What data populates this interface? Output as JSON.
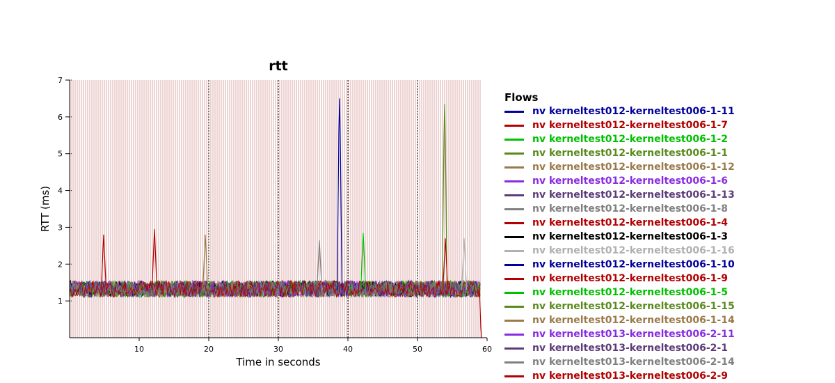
{
  "chart_data": {
    "type": "line",
    "title": "rtt",
    "xlabel": "Time in seconds",
    "ylabel": "RTT (ms)",
    "xlim": [
      0,
      60
    ],
    "ylim": [
      0,
      7
    ],
    "xticks": [
      "10",
      "20",
      "30",
      "40",
      "50",
      "60"
    ],
    "yticks": [
      "1",
      "2",
      "3",
      "4",
      "5",
      "6",
      "7"
    ],
    "grid": "dotted vertical lines at 20, 30, 40, 50",
    "legend_placement": "right",
    "legend_title": "Flows",
    "baseline_range": [
      1.0,
      1.6
    ],
    "series": [
      {
        "name": "nv kerneltest012-kerneltest006-1-11",
        "color": "#00009c",
        "spikes": [
          [
            38.8,
            6.5
          ]
        ]
      },
      {
        "name": "nv kerneltest012-kerneltest006-1-7",
        "color": "#b30000",
        "spikes": [
          [
            4.9,
            2.8
          ]
        ]
      },
      {
        "name": "nv kerneltest012-kerneltest006-1-2",
        "color": "#00c000",
        "spikes": [
          [
            42.2,
            2.85
          ]
        ]
      },
      {
        "name": "nv kerneltest012-kerneltest006-1-1",
        "color": "#5a8a1e",
        "spikes": [
          [
            53.9,
            6.35
          ]
        ]
      },
      {
        "name": "nv kerneltest012-kerneltest006-1-12",
        "color": "#9a7a4a",
        "spikes": [
          [
            19.5,
            2.8
          ]
        ]
      },
      {
        "name": "nv kerneltest012-kerneltest006-1-6",
        "color": "#8a2be2",
        "spikes": []
      },
      {
        "name": "nv kerneltest012-kerneltest006-1-13",
        "color": "#5c3c78",
        "spikes": []
      },
      {
        "name": "nv kerneltest012-kerneltest006-1-8",
        "color": "#808080",
        "spikes": [
          [
            35.9,
            2.65
          ]
        ]
      },
      {
        "name": "nv kerneltest012-kerneltest006-1-4",
        "color": "#b30000",
        "spikes": [
          [
            12.2,
            2.95
          ],
          [
            54.0,
            2.7
          ]
        ]
      },
      {
        "name": "nv kerneltest012-kerneltest006-1-3",
        "color": "#000000",
        "spikes": []
      },
      {
        "name": "nv kerneltest012-kerneltest006-1-16",
        "color": "#b0b0b0",
        "spikes": [
          [
            56.7,
            2.7
          ]
        ]
      },
      {
        "name": "nv kerneltest012-kerneltest006-1-10",
        "color": "#00009c",
        "spikes": []
      },
      {
        "name": "nv kerneltest012-kerneltest006-1-9",
        "color": "#b30000",
        "spikes": [
          [
            59.1,
            0
          ]
        ]
      },
      {
        "name": "nv kerneltest012-kerneltest006-1-5",
        "color": "#00c000",
        "spikes": []
      },
      {
        "name": "nv kerneltest012-kerneltest006-1-15",
        "color": "#5a8a1e",
        "spikes": []
      },
      {
        "name": "nv kerneltest012-kerneltest006-1-14",
        "color": "#9a7a4a",
        "spikes": []
      },
      {
        "name": "nv kerneltest013-kerneltest006-2-11",
        "color": "#8a2be2",
        "spikes": []
      },
      {
        "name": "nv kerneltest013-kerneltest006-2-1",
        "color": "#5c3c78",
        "spikes": []
      },
      {
        "name": "nv kerneltest013-kerneltest006-2-14",
        "color": "#808080",
        "spikes": []
      },
      {
        "name": "nv kerneltest013-kerneltest006-2-9",
        "color": "#b30000",
        "spikes": []
      }
    ]
  }
}
